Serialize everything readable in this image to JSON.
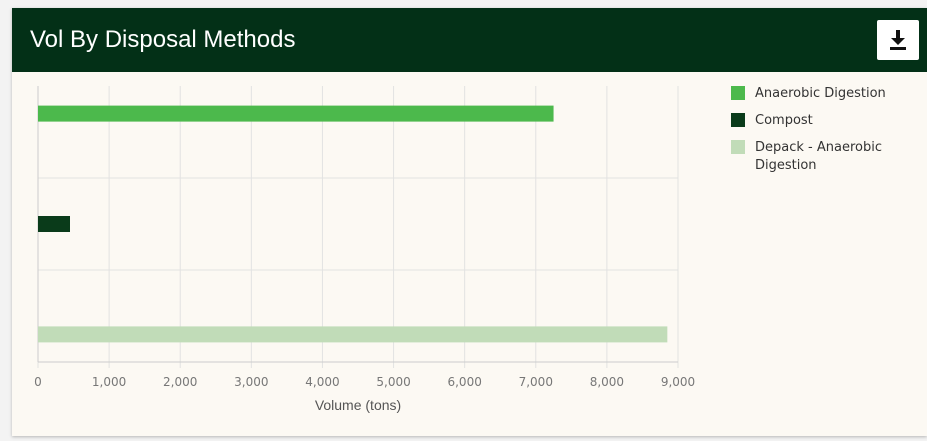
{
  "header": {
    "title": "Vol By Disposal Methods",
    "download_icon": "download-icon"
  },
  "colors": {
    "header_bg": "#033017",
    "card_bg": "#fcf9f3",
    "anaerobic": "#4cb94c",
    "compost": "#0a3b1a",
    "depack": "#c1dcb8"
  },
  "chart_data": {
    "type": "bar",
    "orientation": "horizontal",
    "xlabel": "Volume (tons)",
    "ylabel": "",
    "xlim": [
      0,
      9000
    ],
    "x_ticks": [
      "0",
      "1,000",
      "2,000",
      "3,000",
      "4,000",
      "5,000",
      "6,000",
      "7,000",
      "8,000",
      "9,000"
    ],
    "grid": true,
    "legend_position": "right",
    "series": [
      {
        "name": "Anaerobic Digestion",
        "value": 7250,
        "color": "#4cb94c"
      },
      {
        "name": "Compost",
        "value": 450,
        "color": "#0a3b1a"
      },
      {
        "name": "Depack - Anaerobic Digestion",
        "value": 8850,
        "color": "#c1dcb8"
      }
    ]
  }
}
